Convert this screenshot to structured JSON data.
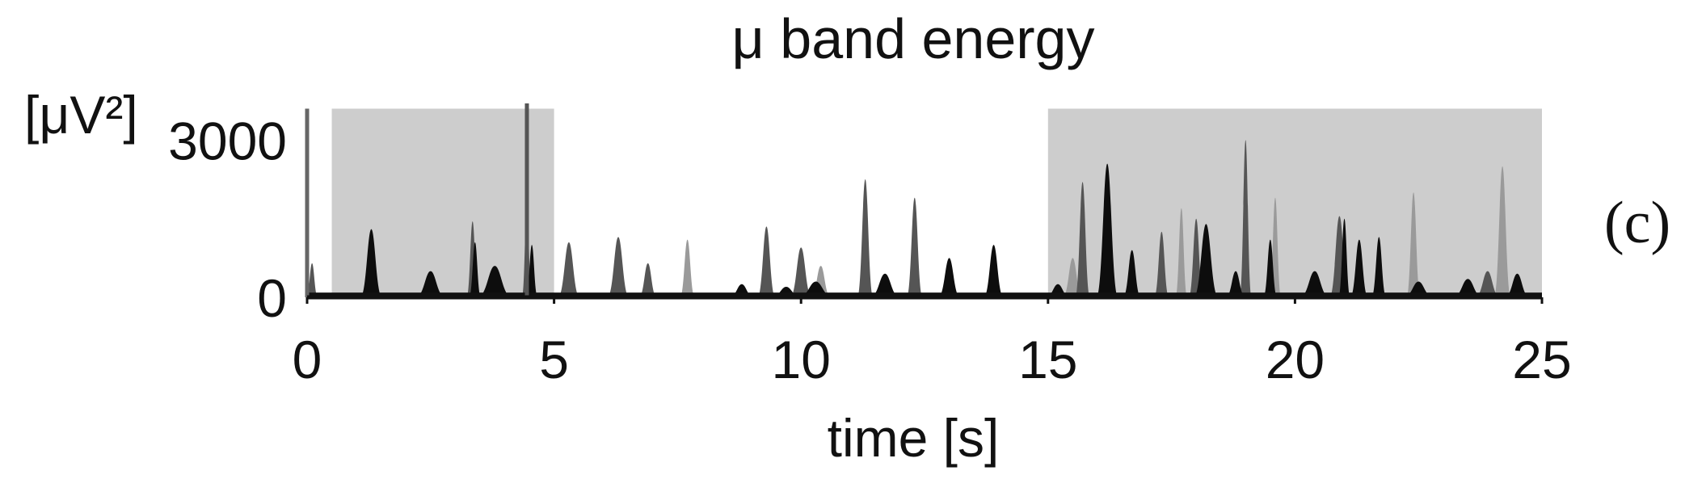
{
  "chart_data": {
    "type": "area",
    "title": "μ band energy",
    "xlabel": "time [s]",
    "ylabel": "[μV²]",
    "panel_label": "(c)",
    "xlim": [
      0,
      25
    ],
    "ylim": [
      0,
      3700
    ],
    "x_ticks": [
      0,
      5,
      10,
      15,
      20,
      25
    ],
    "y_ticks": [
      0,
      3000
    ],
    "grid": false,
    "legend": "none",
    "shaded_intervals": [
      {
        "start": 0.5,
        "end": 5.0,
        "top": 3600
      },
      {
        "start": 15.0,
        "end": 25.0,
        "top": 3600
      }
    ],
    "series": [
      {
        "color": "#0d0d0d",
        "peaks": [
          [
            1.3,
            1300,
            0.22
          ],
          [
            2.5,
            500,
            0.3
          ],
          [
            3.8,
            600,
            0.35
          ],
          [
            3.4,
            1050,
            0.12
          ],
          [
            4.55,
            1000,
            0.12
          ],
          [
            8.8,
            250,
            0.25
          ],
          [
            9.7,
            200,
            0.3
          ],
          [
            10.3,
            300,
            0.35
          ],
          [
            11.7,
            450,
            0.3
          ],
          [
            13.0,
            750,
            0.22
          ],
          [
            13.9,
            1000,
            0.2
          ],
          [
            15.2,
            250,
            0.25
          ],
          [
            16.2,
            2550,
            0.22
          ],
          [
            16.7,
            900,
            0.18
          ],
          [
            18.2,
            1400,
            0.25
          ],
          [
            18.8,
            500,
            0.2
          ],
          [
            19.5,
            1100,
            0.14
          ],
          [
            20.4,
            500,
            0.3
          ],
          [
            21.0,
            1500,
            0.12
          ],
          [
            21.3,
            1100,
            0.18
          ],
          [
            21.7,
            1150,
            0.15
          ],
          [
            22.5,
            300,
            0.3
          ],
          [
            23.5,
            350,
            0.3
          ],
          [
            24.5,
            450,
            0.25
          ]
        ]
      },
      {
        "color": "#555555",
        "peaks": [
          [
            0.1,
            650,
            0.12
          ],
          [
            3.35,
            1450,
            0.12
          ],
          [
            4.45,
            1850,
            0.1
          ],
          [
            5.3,
            1050,
            0.22
          ],
          [
            6.3,
            1150,
            0.22
          ],
          [
            6.9,
            650,
            0.18
          ],
          [
            9.3,
            1350,
            0.18
          ],
          [
            10.0,
            950,
            0.22
          ],
          [
            11.3,
            2250,
            0.16
          ],
          [
            12.3,
            1900,
            0.16
          ],
          [
            15.7,
            2200,
            0.15
          ],
          [
            17.3,
            1250,
            0.15
          ],
          [
            18.0,
            1500,
            0.15
          ],
          [
            19.0,
            3000,
            0.12
          ],
          [
            20.9,
            1550,
            0.2
          ],
          [
            23.9,
            500,
            0.25
          ]
        ]
      },
      {
        "color": "#9a9a9a",
        "peaks": [
          [
            7.7,
            1100,
            0.15
          ],
          [
            10.4,
            600,
            0.2
          ],
          [
            15.5,
            750,
            0.2
          ],
          [
            17.7,
            1700,
            0.12
          ],
          [
            19.6,
            1900,
            0.12
          ],
          [
            22.4,
            2000,
            0.14
          ],
          [
            24.2,
            2500,
            0.17
          ]
        ]
      }
    ],
    "spikes": [
      {
        "x": 0.0,
        "y": 3600,
        "color": "#666666"
      },
      {
        "x": 4.45,
        "y": 3700,
        "color": "#555555"
      }
    ]
  }
}
